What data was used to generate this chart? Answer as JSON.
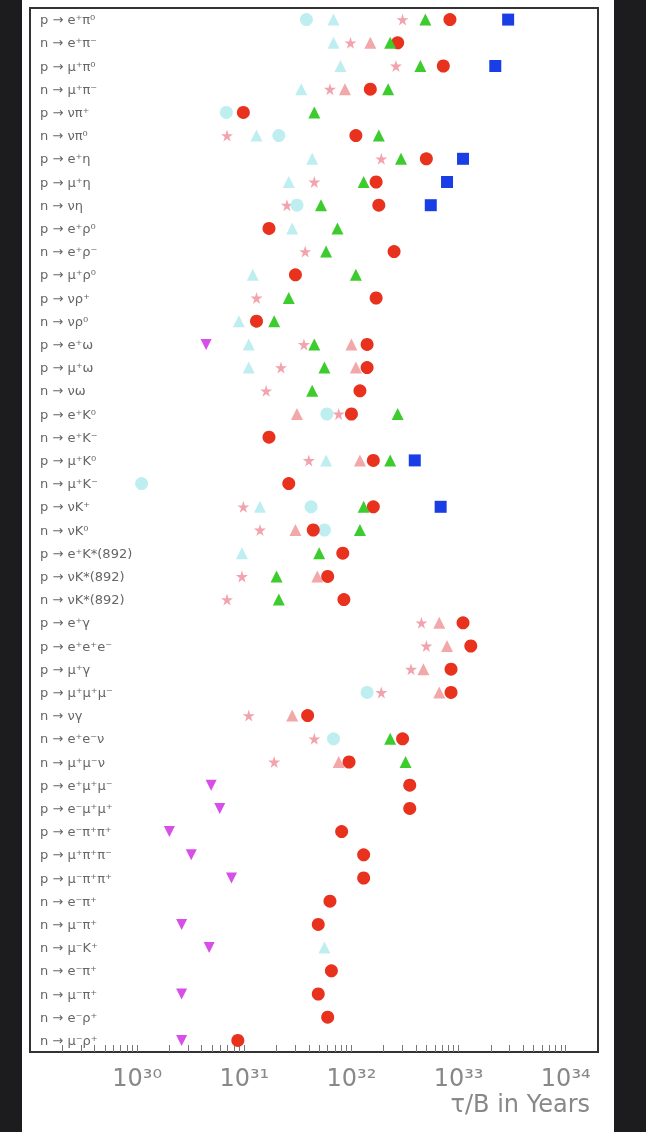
{
  "chart_data": {
    "type": "scatter",
    "orientation": "horizontal",
    "log": "x",
    "xlabel": "τ/B in Years",
    "categories": [
      "p → e⁺π⁰",
      "n → e⁺π⁻",
      "p → μ⁺π⁰",
      "n → μ⁺π⁻",
      "p → νπ⁺",
      "n → νπ⁰",
      "p → e⁺η",
      "p → μ⁺η",
      "n → νη",
      "p → e⁺ρ⁰",
      "n → e⁺ρ⁻",
      "p → μ⁺ρ⁰",
      "p → νρ⁺",
      "n → νρ⁰",
      "p → e⁺ω",
      "p → μ⁺ω",
      "n → νω",
      "p → e⁺K⁰",
      "n → e⁺K⁻",
      "p → μ⁺K⁰",
      "n → μ⁺K⁻",
      "p → νK⁺",
      "n → νK⁰",
      "p → e⁺K*(892)",
      "p → νK*(892)",
      "n → νK*(892)",
      "p → e⁺γ",
      "p → e⁺e⁺e⁻",
      "p → μ⁺γ",
      "p → μ⁺μ⁺μ⁻",
      "n → νγ",
      "n → e⁺e⁻ν",
      "n → μ⁺μ⁻ν",
      "p → e⁺μ⁺μ⁻",
      "p → e⁻μ⁺μ⁺",
      "p → e⁻π⁺π⁺",
      "p → μ⁺π⁺π⁻",
      "p → μ⁻π⁺π⁺",
      "n → e⁻π⁺",
      "n → μ⁻π⁺",
      "n → μ⁻K⁺",
      "n → e⁻π⁺",
      "n → μ⁻π⁺",
      "n → e⁻ρ⁺",
      "n → μ⁻ρ⁺"
    ],
    "xlim": [
      1e+29,
      2e+34
    ],
    "xticks": [
      {
        "value": 2e+29,
        "label": null
      },
      {
        "value": 3e+29,
        "label": null
      },
      {
        "value": 4e+29,
        "label": null
      },
      {
        "value": 5e+29,
        "label": null
      },
      {
        "value": 6e+29,
        "label": null
      },
      {
        "value": 7e+29,
        "label": null
      },
      {
        "value": 8e+29,
        "label": null
      },
      {
        "value": 9e+29,
        "label": null
      },
      {
        "value": 1e+30,
        "label": "10³⁰"
      },
      {
        "value": 2e+30,
        "label": null
      },
      {
        "value": 3e+30,
        "label": null
      },
      {
        "value": 4e+30,
        "label": null
      },
      {
        "value": 5e+30,
        "label": null
      },
      {
        "value": 6e+30,
        "label": null
      },
      {
        "value": 7e+30,
        "label": null
      },
      {
        "value": 8e+30,
        "label": null
      },
      {
        "value": 9e+30,
        "label": null
      },
      {
        "value": 1e+31,
        "label": "10³¹"
      },
      {
        "value": 2e+31,
        "label": null
      },
      {
        "value": 3e+31,
        "label": null
      },
      {
        "value": 4e+31,
        "label": null
      },
      {
        "value": 5e+31,
        "label": null
      },
      {
        "value": 6e+31,
        "label": null
      },
      {
        "value": 7e+31,
        "label": null
      },
      {
        "value": 8e+31,
        "label": null
      },
      {
        "value": 9e+31,
        "label": null
      },
      {
        "value": 1e+32,
        "label": "10³²"
      },
      {
        "value": 2e+32,
        "label": null
      },
      {
        "value": 3e+32,
        "label": null
      },
      {
        "value": 4e+32,
        "label": null
      },
      {
        "value": 5e+32,
        "label": null
      },
      {
        "value": 6e+32,
        "label": null
      },
      {
        "value": 7e+32,
        "label": null
      },
      {
        "value": 8e+32,
        "label": null
      },
      {
        "value": 9e+32,
        "label": null
      },
      {
        "value": 1e+33,
        "label": "10³³"
      },
      {
        "value": 2e+33,
        "label": null
      },
      {
        "value": 3e+33,
        "label": null
      },
      {
        "value": 4e+33,
        "label": null
      },
      {
        "value": 5e+33,
        "label": null
      },
      {
        "value": 6e+33,
        "label": null
      },
      {
        "value": 7e+33,
        "label": null
      },
      {
        "value": 8e+33,
        "label": null
      },
      {
        "value": 9e+33,
        "label": null
      },
      {
        "value": 1e+34,
        "label": "10³⁴"
      }
    ],
    "series": [
      {
        "color": "#f2a3ad",
        "marker": "star",
        "values": [
          3e+32,
          9.8e+31,
          2.6e+32,
          6.3e+31,
          null,
          6.9e+30,
          1.9e+32,
          4.5e+31,
          2.5e+31,
          null,
          3.7e+31,
          null,
          1.3e+31,
          null,
          3.6e+31,
          2.2e+31,
          1.6e+31,
          7.6e+31,
          null,
          4e+31,
          null,
          9.8e+30,
          1.4e+31,
          null,
          9.5e+30,
          6.9e+30,
          4.5e+32,
          5e+32,
          3.6e+32,
          1.9e+32,
          1.1e+31,
          4.5e+31,
          1.9e+31,
          null,
          null,
          null,
          null,
          null,
          null,
          null,
          null,
          null,
          null,
          null,
          null
        ]
      },
      {
        "color": "#f2a8a8",
        "marker": "triangle",
        "values": [
          null,
          1.5e+32,
          null,
          8.7e+31,
          null,
          null,
          null,
          null,
          null,
          null,
          null,
          null,
          null,
          null,
          1e+32,
          1.1e+32,
          null,
          3.1e+31,
          null,
          1.2e+32,
          null,
          null,
          3e+31,
          null,
          4.8e+31,
          null,
          6.6e+32,
          7.8e+32,
          4.7e+32,
          6.6e+32,
          2.8e+31,
          null,
          7.6e+31,
          null,
          null,
          null,
          null,
          null,
          null,
          null,
          null,
          null,
          null,
          null,
          null
        ]
      },
      {
        "color": "#bfeef0",
        "marker": "circle",
        "values": [
          3.8e+31,
          null,
          null,
          null,
          6.8e+30,
          2.1e+31,
          null,
          null,
          3.1e+31,
          null,
          null,
          null,
          null,
          null,
          null,
          null,
          null,
          5.9e+31,
          null,
          null,
          1.1e+30,
          4.2e+31,
          5.6e+31,
          null,
          null,
          null,
          null,
          null,
          null,
          1.4e+32,
          null,
          6.8e+31,
          null,
          null,
          null,
          null,
          null,
          null,
          null,
          null,
          null,
          null,
          null,
          null,
          null
        ]
      },
      {
        "color": "#bfeef0",
        "marker": "triangle",
        "values": [
          6.8e+31,
          6.8e+31,
          7.9e+31,
          3.4e+31,
          null,
          1.3e+31,
          4.3e+31,
          2.6e+31,
          null,
          2.8e+31,
          null,
          1.2e+31,
          null,
          8.9e+30,
          1.1e+31,
          1.1e+31,
          null,
          null,
          null,
          5.8e+31,
          null,
          1.4e+31,
          null,
          9.5e+30,
          null,
          null,
          null,
          null,
          null,
          null,
          null,
          null,
          null,
          null,
          null,
          null,
          null,
          null,
          null,
          null,
          5.6e+31,
          null,
          null,
          null,
          null
        ]
      },
      {
        "color": "#e8321e",
        "marker": "circle",
        "values": [
          8.3e+32,
          2.7e+32,
          7.2e+32,
          1.5e+32,
          9.8e+30,
          1.1e+32,
          5e+32,
          1.7e+32,
          1.8e+32,
          1.7e+31,
          2.5e+32,
          3e+31,
          1.7e+32,
          1.3e+31,
          1.4e+32,
          1.4e+32,
          1.2e+32,
          1e+32,
          1.7e+31,
          1.6e+32,
          2.6e+31,
          1.6e+32,
          4.4e+31,
          8.3e+31,
          6e+31,
          8.5e+31,
          1.1e+33,
          1.3e+33,
          8.5e+32,
          8.5e+32,
          3.9e+31,
          3e+32,
          9.5e+31,
          3.5e+32,
          3.5e+32,
          8.1e+31,
          1.3e+32,
          1.3e+32,
          6.3e+31,
          4.9e+31,
          null,
          6.5e+31,
          4.9e+31,
          6e+31,
          8.7e+30
        ]
      },
      {
        "color": "#3ccc2e",
        "marker": "triangle",
        "values": [
          4.9e+32,
          2.3e+32,
          4.4e+32,
          2.2e+32,
          4.5e+31,
          1.8e+32,
          2.9e+32,
          1.3e+32,
          5.2e+31,
          7.4e+31,
          5.8e+31,
          1.1e+32,
          2.6e+31,
          1.9e+31,
          4.5e+31,
          5.6e+31,
          4.3e+31,
          2.7e+32,
          null,
          2.3e+32,
          null,
          1.3e+32,
          1.2e+32,
          5e+31,
          2e+31,
          2.1e+31,
          null,
          null,
          null,
          null,
          null,
          2.3e+32,
          3.2e+32,
          null,
          null,
          null,
          null,
          null,
          null,
          null,
          null,
          null,
          null,
          null,
          null
        ]
      },
      {
        "color": "#1a3ee6",
        "marker": "square",
        "values": [
          2.9e+33,
          null,
          2.2e+33,
          null,
          null,
          null,
          1.1e+33,
          7.8e+32,
          5.5e+32,
          null,
          null,
          null,
          null,
          null,
          null,
          null,
          null,
          null,
          null,
          3.9e+32,
          null,
          6.8e+32,
          null,
          null,
          null,
          null,
          null,
          null,
          null,
          null,
          null,
          null,
          null,
          null,
          null,
          null,
          null,
          null,
          null,
          null,
          null,
          null,
          null,
          null,
          null
        ]
      },
      {
        "color": "#d84ee8",
        "marker": "triangle-down",
        "values": [
          null,
          null,
          null,
          null,
          null,
          null,
          null,
          null,
          null,
          null,
          null,
          null,
          null,
          null,
          4.4e+30,
          null,
          null,
          null,
          null,
          null,
          null,
          null,
          null,
          null,
          null,
          null,
          null,
          null,
          null,
          null,
          null,
          null,
          null,
          4.9e+30,
          5.9e+30,
          2e+30,
          3.2e+30,
          7.6e+30,
          null,
          2.6e+30,
          4.7e+30,
          null,
          2.6e+30,
          null,
          2.6e+30
        ]
      }
    ]
  }
}
